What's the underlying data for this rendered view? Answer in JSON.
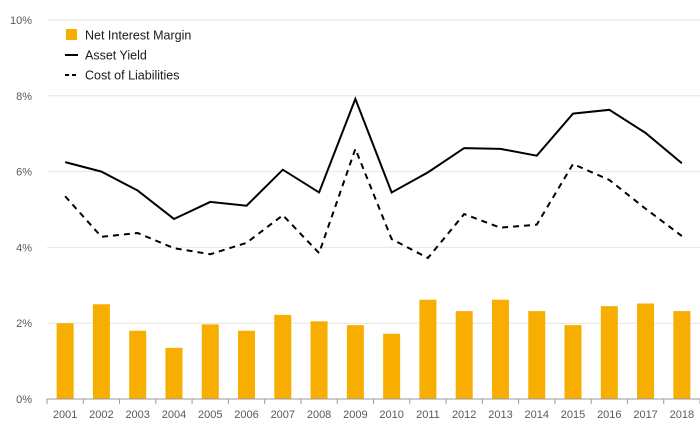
{
  "chart_data": {
    "type": "bar",
    "title": "",
    "xlabel": "",
    "ylabel": "",
    "ylim": [
      0,
      10
    ],
    "y_ticks": [
      "0%",
      "2%",
      "4%",
      "6%",
      "8%",
      "10%"
    ],
    "y_tick_values": [
      0,
      2,
      4,
      6,
      8,
      10
    ],
    "grid": true,
    "legend_position": "top-left",
    "categories": [
      "2001",
      "2002",
      "2003",
      "2004",
      "2005",
      "2006",
      "2007",
      "2008",
      "2009",
      "2010",
      "2011",
      "2012",
      "2013",
      "2014",
      "2015",
      "2016",
      "2017",
      "2018"
    ],
    "series": [
      {
        "name": "Net Interest Margin",
        "type": "bar",
        "color": "#f7ae00",
        "values": [
          2.0,
          2.5,
          1.8,
          1.35,
          1.97,
          1.8,
          2.22,
          2.05,
          1.95,
          1.72,
          2.62,
          2.32,
          2.62,
          2.32,
          1.95,
          2.45,
          2.52,
          2.32
        ]
      },
      {
        "name": "Asset Yield",
        "type": "line",
        "style": "solid",
        "color": "#000000",
        "values": [
          6.25,
          6.0,
          5.5,
          4.75,
          5.2,
          5.1,
          6.05,
          5.45,
          7.92,
          5.45,
          5.98,
          6.62,
          6.6,
          6.42,
          7.53,
          7.63,
          7.02,
          6.22
        ]
      },
      {
        "name": "Cost of Liabilities",
        "type": "line",
        "style": "dashed",
        "color": "#000000",
        "values": [
          5.35,
          4.28,
          4.38,
          3.98,
          3.82,
          4.12,
          4.85,
          3.85,
          6.6,
          4.22,
          3.72,
          4.88,
          4.52,
          4.6,
          6.2,
          5.78,
          5.02,
          4.3
        ]
      }
    ]
  }
}
